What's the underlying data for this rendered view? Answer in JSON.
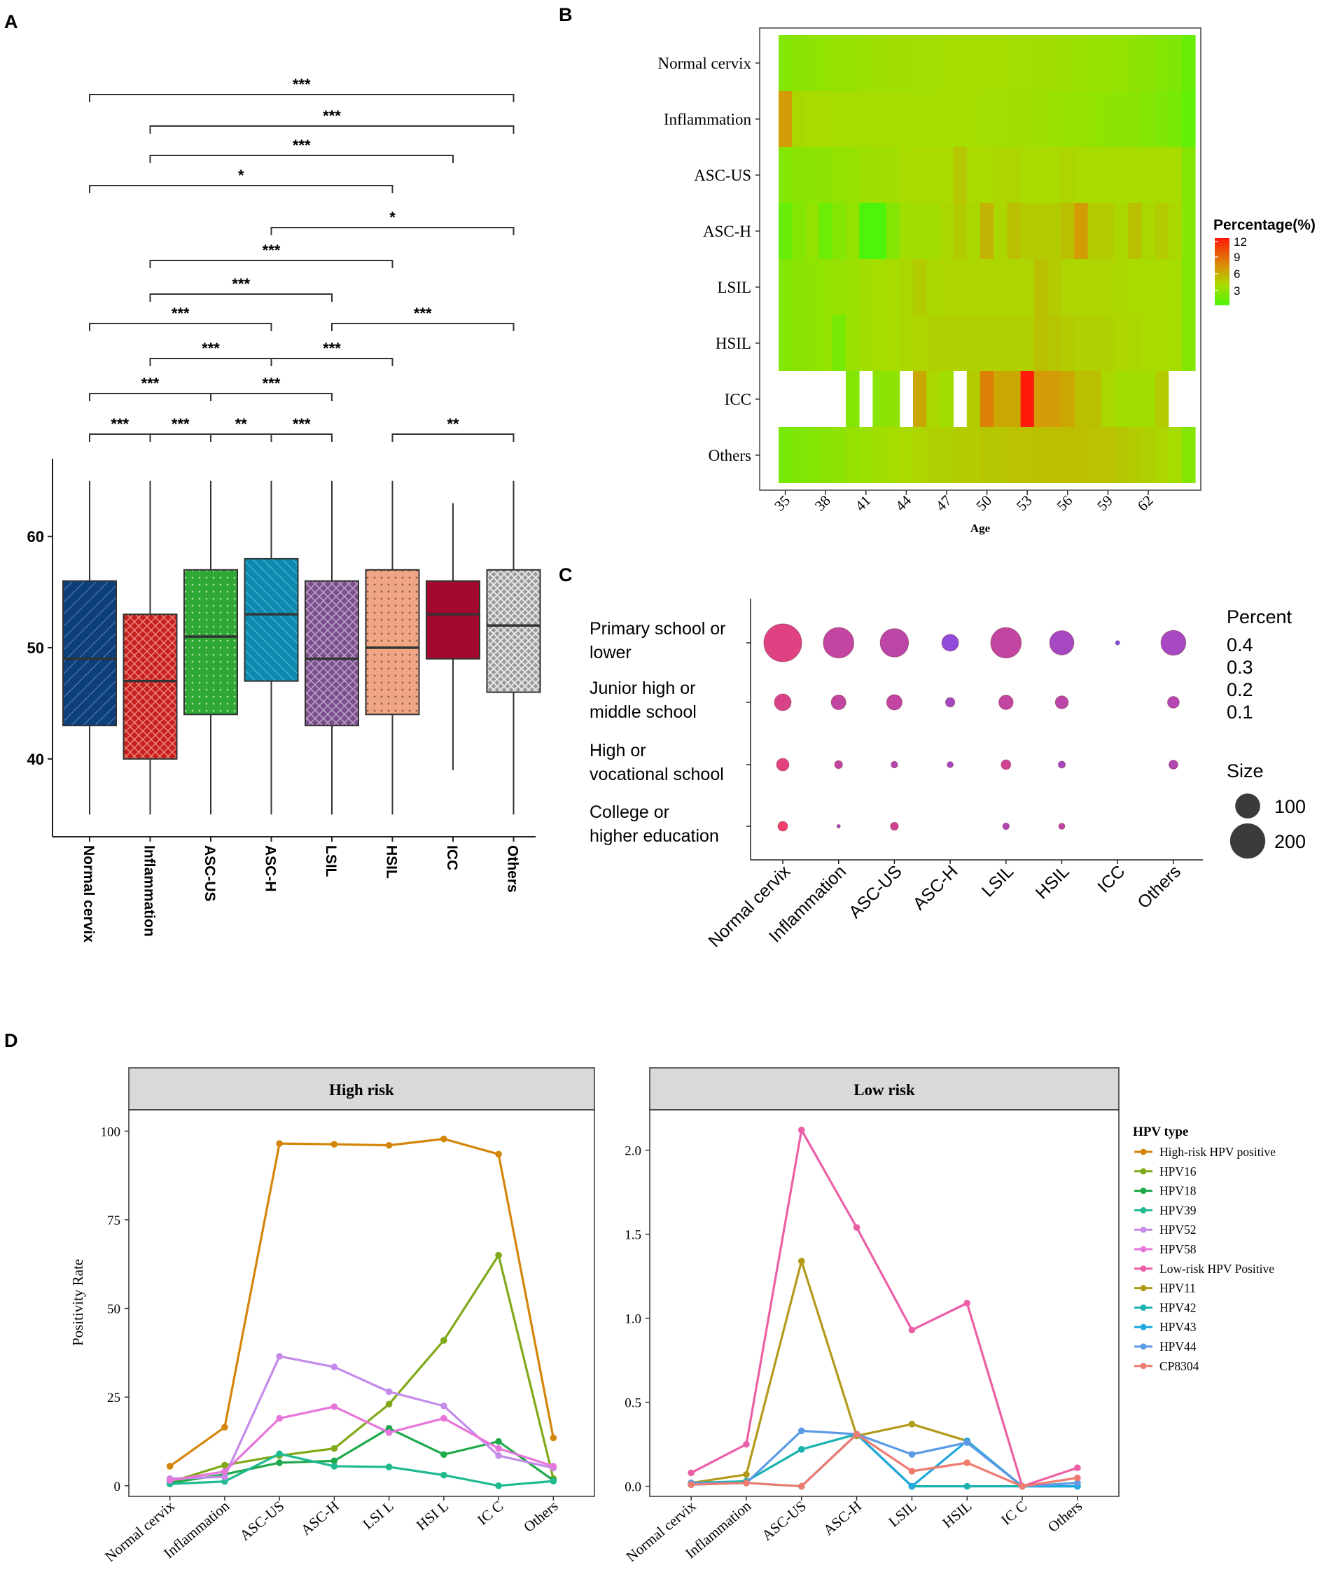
{
  "panel_labels": {
    "a": "A",
    "b": "B",
    "c": "C",
    "d": "D"
  },
  "chart_data": [
    {
      "id": "A",
      "type": "box",
      "categories": [
        "Normal cervix",
        "Inflammation",
        "ASC-US",
        "ASC-H",
        "LSIL",
        "HSIL",
        "ICC",
        "Others"
      ],
      "colors": [
        "#0d3f7c",
        "#c8201f",
        "#2fa836",
        "#0e8ab0",
        "#7b4e8c",
        "#f0a585",
        "#a3082e",
        "#9a9a9a"
      ],
      "boxes": [
        {
          "min": 35,
          "q1": 43,
          "median": 49,
          "q3": 56,
          "max": 65
        },
        {
          "min": 35,
          "q1": 40,
          "median": 47,
          "q3": 53,
          "max": 65
        },
        {
          "min": 35,
          "q1": 44,
          "median": 51,
          "q3": 57,
          "max": 65
        },
        {
          "min": 35,
          "q1": 47,
          "median": 53,
          "q3": 58,
          "max": 65
        },
        {
          "min": 35,
          "q1": 43,
          "median": 49,
          "q3": 56,
          "max": 65
        },
        {
          "min": 35,
          "q1": 44,
          "median": 50,
          "q3": 57,
          "max": 65
        },
        {
          "min": 39,
          "q1": 49,
          "median": 53,
          "q3": 56,
          "max": 63
        },
        {
          "min": 35,
          "q1": 46,
          "median": 52,
          "q3": 57,
          "max": 65
        }
      ],
      "yticks": [
        40,
        50,
        60
      ],
      "ylim": [
        33,
        67
      ],
      "brackets": [
        {
          "from": 0,
          "to": 7,
          "label": "***"
        },
        {
          "from": 1,
          "to": 7,
          "label": "***"
        },
        {
          "from": 1,
          "to": 6,
          "label": "***"
        },
        {
          "from": 0,
          "to": 5,
          "label": "*"
        },
        {
          "from": 3,
          "to": 7,
          "label": "*"
        },
        {
          "from": 1,
          "to": 5,
          "label": "***"
        },
        {
          "from": 1,
          "to": 4,
          "label": "***"
        },
        {
          "from": 0,
          "to": 3,
          "label": "***"
        },
        {
          "from": 4,
          "to": 7,
          "label": "***"
        },
        {
          "from": 1,
          "to": 3,
          "label": "***"
        },
        {
          "from": 3,
          "to": 5,
          "label": "***"
        },
        {
          "from": 0,
          "to": 2,
          "label": "***"
        },
        {
          "from": 2,
          "to": 4,
          "label": "***"
        },
        {
          "from": 0,
          "to": 1,
          "label": "***"
        },
        {
          "from": 1,
          "to": 2,
          "label": "***"
        },
        {
          "from": 2,
          "to": 3,
          "label": "**"
        },
        {
          "from": 3,
          "to": 4,
          "label": "***"
        },
        {
          "from": 5,
          "to": 7,
          "label": "**"
        }
      ]
    },
    {
      "id": "B",
      "type": "heatmap",
      "rows": [
        "Normal cervix",
        "Inflammation",
        "ASC-US",
        "ASC-H",
        "LSIL",
        "HSIL",
        "ICC",
        "Others"
      ],
      "xlabel": "Age",
      "xticks": [
        "35",
        "38",
        "41",
        "44",
        "47",
        "50",
        "53",
        "56",
        "59",
        "62"
      ],
      "ages": [
        35,
        36,
        37,
        38,
        39,
        40,
        41,
        42,
        43,
        44,
        45,
        46,
        47,
        48,
        49,
        50,
        51,
        52,
        53,
        54,
        55,
        56,
        57,
        58,
        59,
        60,
        61,
        62,
        63,
        64,
        65
      ],
      "values": [
        [
          3.0,
          3.2,
          3.4,
          3.5,
          3.6,
          3.7,
          3.8,
          3.9,
          4.0,
          4.0,
          4.1,
          4.1,
          4.2,
          4.2,
          4.2,
          4.2,
          4.2,
          4.1,
          4.1,
          4.0,
          4.0,
          3.9,
          3.8,
          3.7,
          3.6,
          3.5,
          3.4,
          3.2,
          3.0,
          2.8,
          2.0
        ],
        [
          7.0,
          4.5,
          4.3,
          4.3,
          4.2,
          4.2,
          4.2,
          4.2,
          4.2,
          4.2,
          4.2,
          4.2,
          4.2,
          4.2,
          4.2,
          4.1,
          4.1,
          4.0,
          4.0,
          3.9,
          3.8,
          3.7,
          3.6,
          3.5,
          3.4,
          3.3,
          3.2,
          3.0,
          2.8,
          2.5,
          1.8
        ],
        [
          3.0,
          3.2,
          3.3,
          3.4,
          3.5,
          3.7,
          3.9,
          4.0,
          4.0,
          4.3,
          4.4,
          4.4,
          4.4,
          5.2,
          4.4,
          4.4,
          4.6,
          4.6,
          4.4,
          4.4,
          4.4,
          4.6,
          4.4,
          4.3,
          4.3,
          4.3,
          4.3,
          4.3,
          4.3,
          4.3,
          3.0
        ],
        [
          2.0,
          3.0,
          3.5,
          2.2,
          3.0,
          3.5,
          1.0,
          0.5,
          3.0,
          4.0,
          4.0,
          4.0,
          4.5,
          5.0,
          4.5,
          6.0,
          4.5,
          5.5,
          5.0,
          5.0,
          5.0,
          5.5,
          7.0,
          5.0,
          5.0,
          4.5,
          5.5,
          4.5,
          5.0,
          4.5,
          3.0
        ],
        [
          3.0,
          3.2,
          3.4,
          3.5,
          3.6,
          3.8,
          4.0,
          4.2,
          4.3,
          4.5,
          5.0,
          4.5,
          4.6,
          4.6,
          4.6,
          4.6,
          4.6,
          4.6,
          4.6,
          5.5,
          5.0,
          4.6,
          4.6,
          4.6,
          4.6,
          4.5,
          4.4,
          4.3,
          4.3,
          4.2,
          3.0
        ],
        [
          3.0,
          3.2,
          3.4,
          3.5,
          2.5,
          3.8,
          4.0,
          4.2,
          4.3,
          4.5,
          4.6,
          4.7,
          4.8,
          4.8,
          4.8,
          4.8,
          4.8,
          4.8,
          4.8,
          5.5,
          5.2,
          5.0,
          4.8,
          4.8,
          4.7,
          4.6,
          4.5,
          4.4,
          4.3,
          4.2,
          3.0
        ],
        [
          null,
          null,
          null,
          null,
          null,
          3.0,
          null,
          3.2,
          3.4,
          null,
          6.5,
          4.5,
          4.0,
          null,
          5.0,
          8.0,
          6.5,
          6.5,
          12.0,
          7.0,
          7.0,
          6.5,
          5.5,
          5.5,
          4.5,
          4.0,
          4.0,
          4.0,
          5.0,
          null,
          null
        ],
        [
          2.5,
          2.8,
          3.0,
          3.2,
          3.4,
          3.6,
          3.8,
          4.0,
          4.2,
          4.4,
          4.6,
          4.8,
          4.8,
          5.0,
          5.0,
          5.2,
          5.2,
          5.4,
          5.4,
          5.5,
          5.6,
          5.6,
          5.6,
          5.4,
          5.4,
          5.2,
          5.0,
          4.8,
          4.6,
          4.2,
          3.0
        ]
      ],
      "legend_title": "Percentage(%)",
      "legend_ticks": [
        "12",
        "9",
        "6",
        "3"
      ],
      "range": [
        1,
        12
      ]
    },
    {
      "id": "C",
      "type": "scatter",
      "categories": [
        "Normal cervix",
        "Inflammation",
        "ASC-US",
        "ASC-H",
        "LSIL",
        "HSIL",
        "ICC",
        "Others"
      ],
      "rows": [
        "Primary school or lower",
        "Junior high or middle school",
        "High or vocational school",
        "College or higher education"
      ],
      "row_labels": [
        [
          "Primary school or",
          "lower"
        ],
        [
          "Junior high  or",
          "middle school"
        ],
        [
          "High  or",
          "vocational school"
        ],
        [
          "College or",
          "higher education"
        ]
      ],
      "size": [
        [
          230,
          150,
          130,
          45,
          150,
          95,
          3,
          100
        ],
        [
          45,
          35,
          38,
          14,
          33,
          27,
          null,
          22
        ],
        [
          25,
          10,
          7,
          6,
          15,
          8,
          null,
          13
        ],
        [
          15,
          2,
          10,
          null,
          7,
          6,
          null,
          null
        ]
      ],
      "percent": [
        [
          0.4,
          0.3,
          0.28,
          0.12,
          0.3,
          0.2,
          0.05,
          0.2
        ],
        [
          0.38,
          0.3,
          0.3,
          0.2,
          0.3,
          0.28,
          null,
          0.25
        ],
        [
          0.42,
          0.3,
          0.25,
          0.2,
          0.35,
          0.2,
          null,
          0.25
        ],
        [
          0.48,
          0.2,
          0.35,
          null,
          0.25,
          0.3,
          null,
          null
        ]
      ],
      "legend_percent_title": "Percent",
      "legend_percent_ticks": [
        "0.4",
        "0.3",
        "0.2",
        "0.1"
      ],
      "legend_size_title": "Size",
      "legend_size_ticks": [
        "100",
        "200"
      ]
    },
    {
      "id": "D",
      "type": "line",
      "facets": [
        "High risk",
        "Low risk"
      ],
      "legend_title": "HPV type",
      "ylabel": "Positivity Rate",
      "categories_high": [
        "Normal cervix",
        "Inflammation",
        "ASC-US",
        "ASC-H",
        "LSI L",
        "HSI L",
        "IC C",
        "Others"
      ],
      "categories_low": [
        "Normal cervix",
        "Inflammation",
        "ASC-US",
        "ASC-H",
        "LSIL",
        "HSIL",
        "IC C",
        "Others"
      ],
      "high": {
        "yticks": [
          0,
          25,
          50,
          75,
          100
        ],
        "ylim": [
          -3,
          106
        ],
        "series": [
          {
            "name": "High-risk HPV positive",
            "color": "#d4860a",
            "values": [
              5.5,
              16.5,
              96.5,
              96.3,
              96.0,
              97.8,
              93.5,
              13.5
            ]
          },
          {
            "name": "HPV16",
            "color": "#80a91a",
            "values": [
              1.0,
              5.8,
              8.5,
              10.5,
              23.0,
              41.0,
              65.0,
              2.0
            ]
          },
          {
            "name": "HPV18",
            "color": "#1ea94a",
            "values": [
              0.8,
              3.2,
              6.5,
              7.0,
              16.2,
              8.8,
              12.5,
              1.5
            ]
          },
          {
            "name": "HPV39",
            "color": "#1fba90",
            "values": [
              0.5,
              1.2,
              9.0,
              5.5,
              5.3,
              3.0,
              0.0,
              1.3
            ]
          },
          {
            "name": "HPV52",
            "color": "#c48bea",
            "values": [
              2.0,
              2.5,
              36.5,
              33.5,
              26.5,
              22.5,
              8.5,
              5.0
            ]
          },
          {
            "name": "HPV58",
            "color": "#e676d9",
            "values": [
              1.5,
              4.0,
              19.0,
              22.3,
              15.0,
              19.0,
              10.5,
              5.5
            ]
          }
        ]
      },
      "low": {
        "yticks": [
          "0.0",
          "0.5",
          "1.0",
          "1.5",
          "2.0"
        ],
        "yvals": [
          0,
          0.5,
          1.0,
          1.5,
          2.0
        ],
        "ylim": [
          -0.06,
          2.24
        ],
        "series": [
          {
            "name": "Low-risk HPV Positive",
            "color": "#ec5fa6",
            "values": [
              0.08,
              0.25,
              2.12,
              1.54,
              0.93,
              1.09,
              0.0,
              0.11
            ]
          },
          {
            "name": "HPV11",
            "color": "#b29a1a",
            "values": [
              0.02,
              0.07,
              1.34,
              0.3,
              0.37,
              0.27,
              0.0,
              0.02
            ]
          },
          {
            "name": "HPV42",
            "color": "#1ab3b0",
            "values": [
              0.02,
              0.03,
              0.22,
              0.31,
              0.0,
              0.0,
              0.0,
              0.0
            ]
          },
          {
            "name": "HPV43",
            "color": "#1fa8de",
            "values": [
              0.01,
              0.02,
              0.0,
              0.31,
              0.0,
              0.27,
              0.0,
              0.0
            ]
          },
          {
            "name": "HPV44",
            "color": "#5c9ae6",
            "values": [
              0.02,
              0.02,
              0.33,
              0.31,
              0.19,
              0.26,
              0.0,
              0.02
            ]
          },
          {
            "name": "CP8304",
            "color": "#ee7b6f",
            "values": [
              0.01,
              0.02,
              0.0,
              0.31,
              0.09,
              0.14,
              0.0,
              0.05
            ]
          }
        ]
      }
    }
  ]
}
